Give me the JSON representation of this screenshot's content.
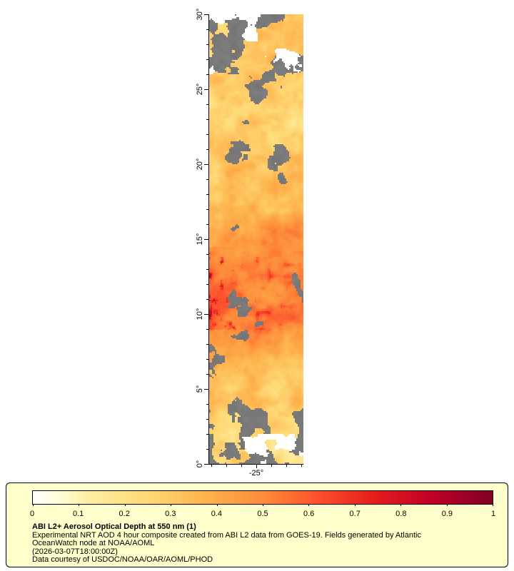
{
  "map": {
    "y_ticks": [
      "30°",
      "25°",
      "20°",
      "15°",
      "10°",
      "5°",
      "0°"
    ],
    "x_tick": "-25°"
  },
  "legend": {
    "colorbar_ticks": [
      "0",
      "0.1",
      "0.2",
      "0.3",
      "0.4",
      "0.5",
      "0.6",
      "0.7",
      "0.8",
      "0.9",
      "1"
    ],
    "title": "ABI L2+ Aerosol Optical Depth at 550 nm (1)",
    "description_line1": "Experimental NRT AOD 4 hour composite created from ABI L2 data from GOES-19. Fields generated by Atlantic",
    "description_line2": "OceanWatch node at NOAA/AOML",
    "timestamp": "(2026-03-07T18:00:00Z)",
    "credit": "Data courtesy of USDOC/NOAA/OAR/AOML/PHOD"
  },
  "colors": {
    "page_background": "#ffffff",
    "legend_background": "#ffffcc",
    "axis": "#000000"
  },
  "chart_data": {
    "type": "heatmap",
    "title": "ABI L2+ Aerosol Optical Depth at 550 nm",
    "value_name": "Aerosol Optical Depth at 550 nm",
    "value_range": [
      0,
      1
    ],
    "colorbar_tick_values": [
      0,
      0.1,
      0.2,
      0.3,
      0.4,
      0.5,
      0.6,
      0.7,
      0.8,
      0.9,
      1
    ],
    "lat_range": [
      0,
      30
    ],
    "lat_tick_interval_deg": 5,
    "lon_tick_labels": [
      "-25°"
    ],
    "colormap": [
      [
        0,
        "#ffffff"
      ],
      [
        0.05,
        "#ffffdd"
      ],
      [
        0.125,
        "#ffeda0"
      ],
      [
        0.25,
        "#fed976"
      ],
      [
        0.375,
        "#feb24c"
      ],
      [
        0.5,
        "#fd8d3c"
      ],
      [
        0.625,
        "#fc4e2a"
      ],
      [
        0.75,
        "#e31a1c"
      ],
      [
        0.875,
        "#bd0026"
      ],
      [
        1,
        "#800026"
      ]
    ],
    "no_data_color": "#ffffff",
    "cloud_color": "#7a7a7a",
    "aod_profile": {
      "lat": [
        0,
        2,
        4,
        6,
        8,
        10,
        11,
        13,
        15,
        17,
        19,
        22,
        26,
        30
      ],
      "aod": [
        0.24,
        0.27,
        0.3,
        0.36,
        0.45,
        0.54,
        0.56,
        0.52,
        0.46,
        0.38,
        0.32,
        0.3,
        0.32,
        0.28
      ]
    },
    "notes": "Gray pixels are cloud/no-retrieval areas; highest AOD (0.6-0.8) occurs between 9N and 14N, strongest near the western edge of the strip."
  }
}
